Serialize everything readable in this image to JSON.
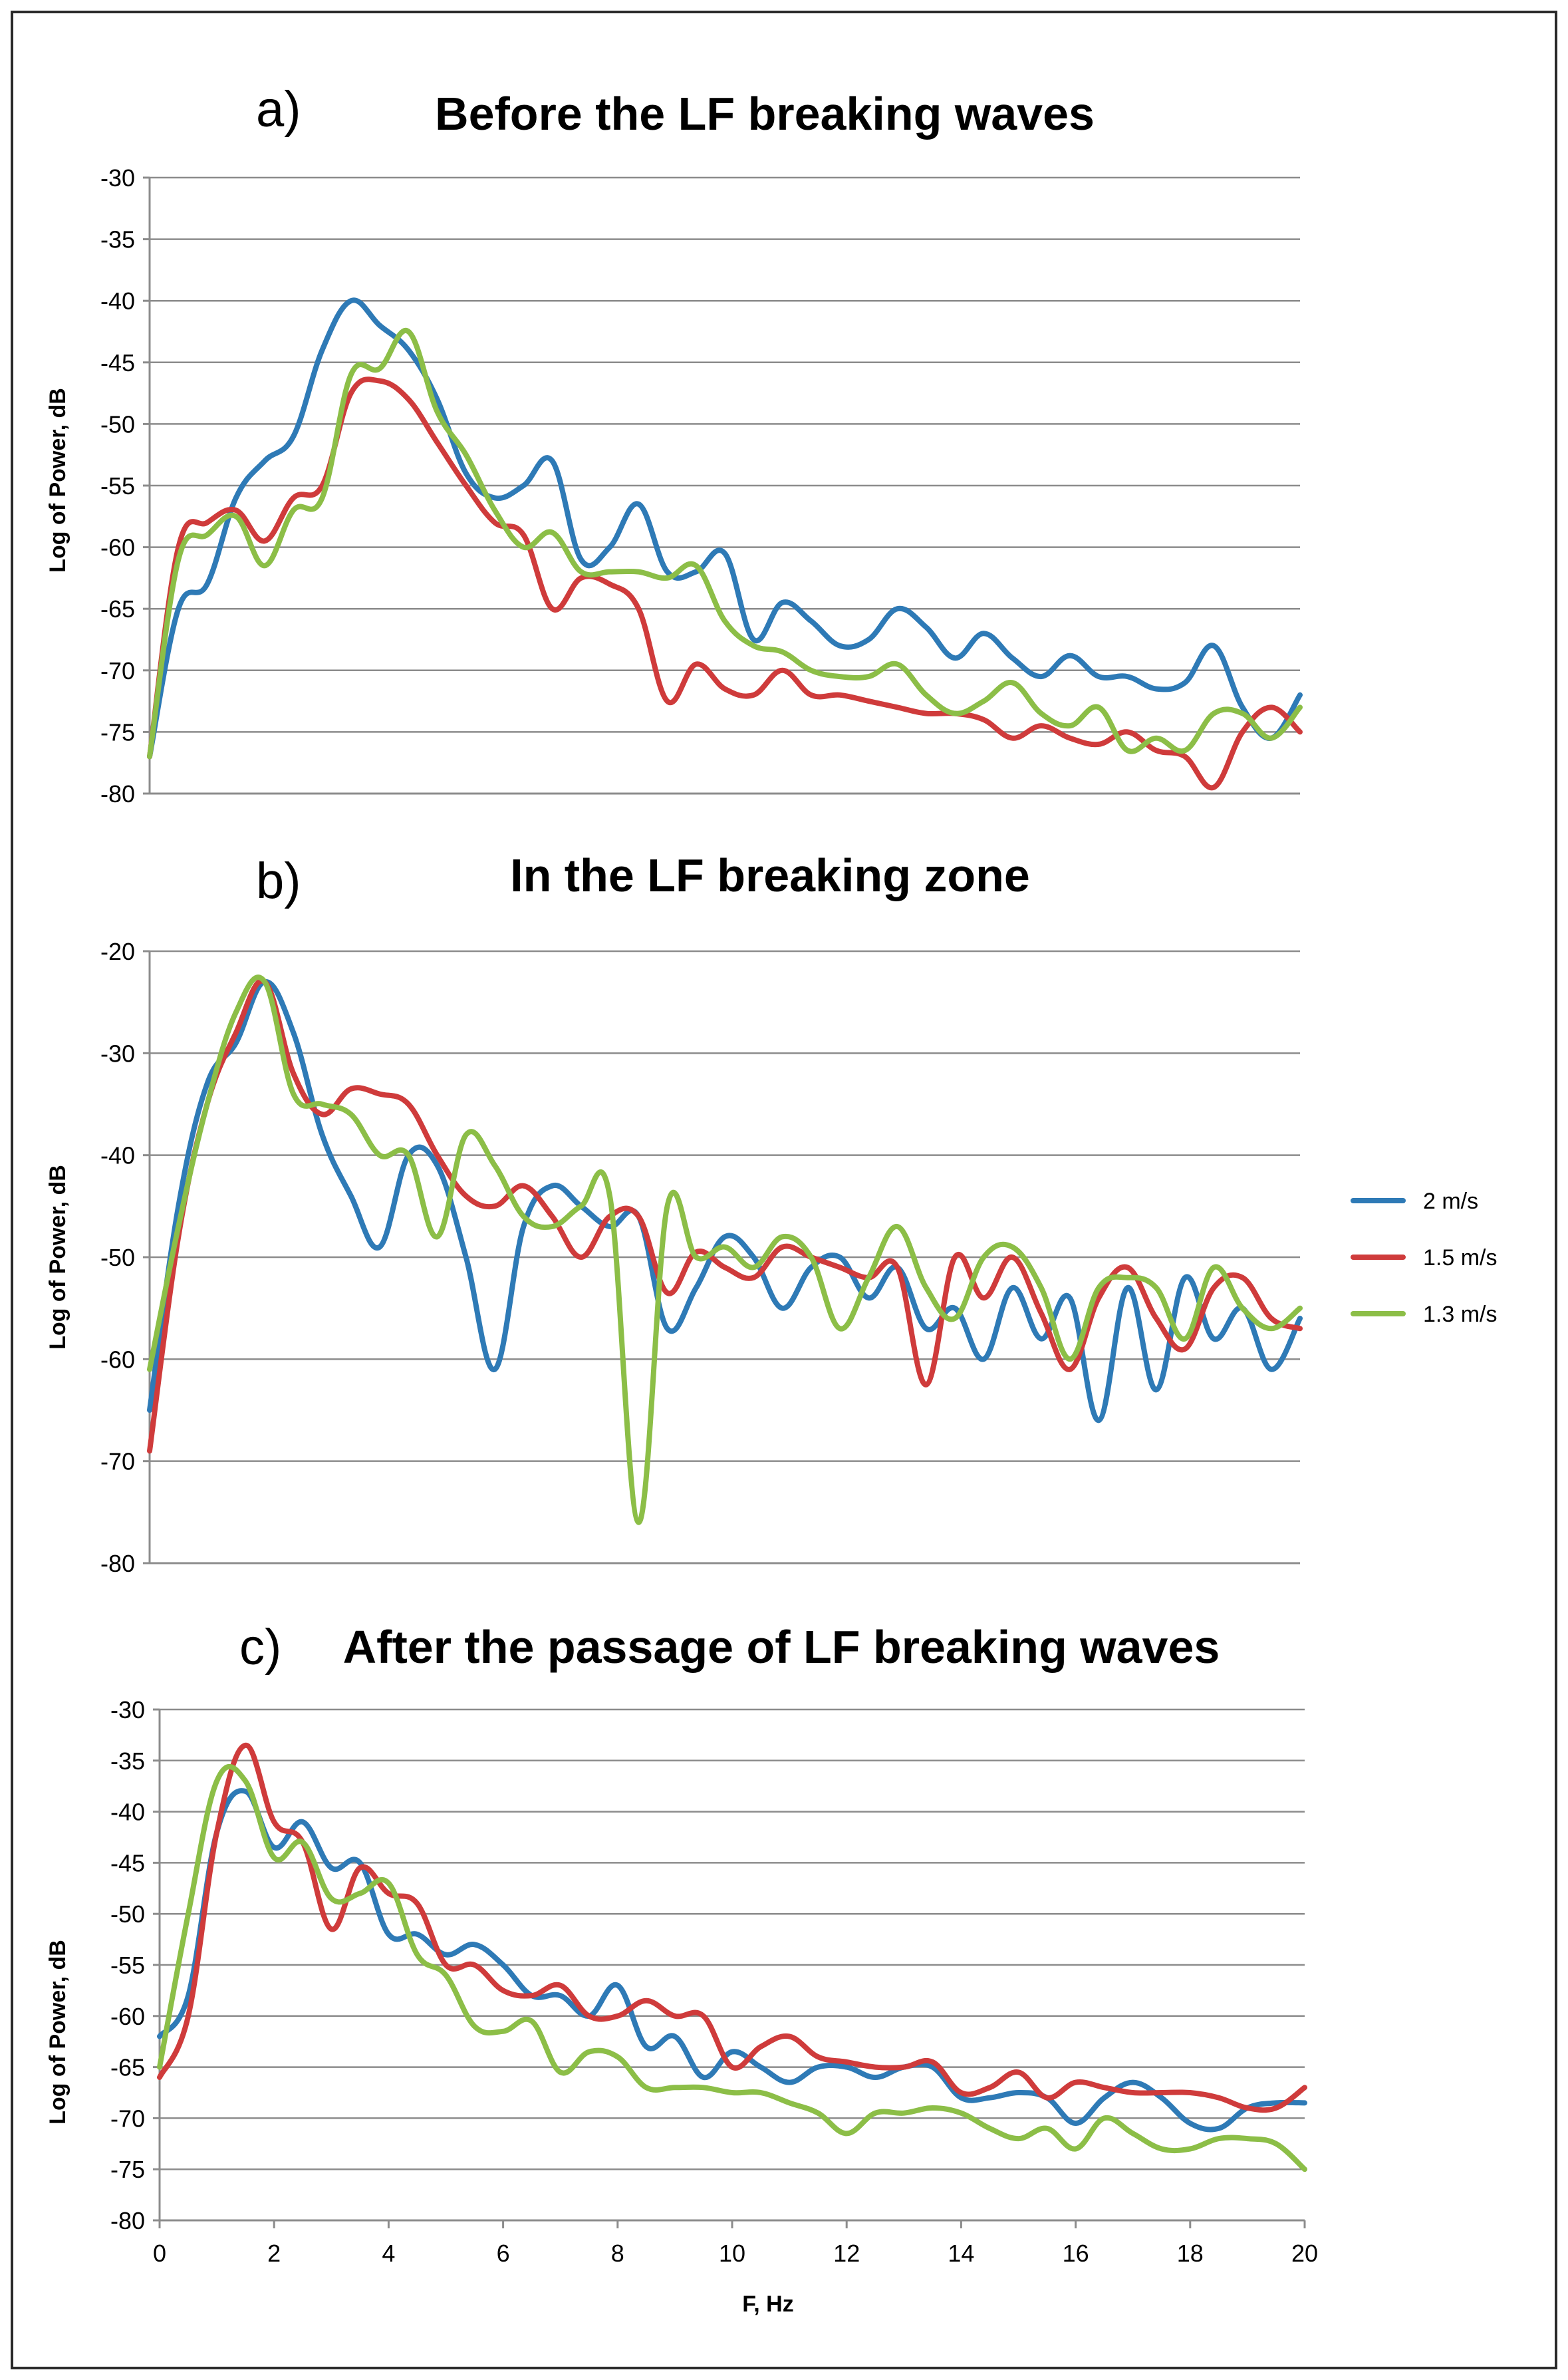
{
  "colors": {
    "s2": "#2e7ab6",
    "s15": "#cf3b3b",
    "s13": "#8cbe47"
  },
  "chart_data": [
    {
      "type": "line",
      "panel": "a)",
      "title": "Before the LF breaking waves",
      "xlabel": "",
      "ylabel": "Log of Power, dB",
      "xlim": [
        0,
        20
      ],
      "ylim": [
        -80,
        -30
      ],
      "yticks": [
        -30,
        -35,
        -40,
        -45,
        -50,
        -55,
        -60,
        -65,
        -70,
        -75,
        -80
      ],
      "xticks": [],
      "grid": true,
      "series": [
        {
          "name": "2 m/s",
          "x": [
            0,
            0.5,
            1,
            1.5,
            2,
            2.5,
            3,
            3.5,
            4,
            4.5,
            5,
            5.5,
            6,
            6.5,
            7,
            7.5,
            8,
            8.5,
            9,
            9.5,
            10,
            10.5,
            11,
            11.5,
            12,
            12.5,
            13,
            13.5,
            14,
            14.5,
            15,
            15.5,
            16,
            16.5,
            17,
            17.5,
            18,
            18.5,
            19,
            19.5,
            20
          ],
          "y": [
            -77,
            -65,
            -63,
            -56,
            -53,
            -51,
            -44,
            -40,
            -42,
            -44,
            -48,
            -54,
            -56,
            -55,
            -53,
            -61,
            -60,
            -56.5,
            -62,
            -62,
            -60.5,
            -67.5,
            -64.5,
            -66,
            -68,
            -67.5,
            -65,
            -66.5,
            -69,
            -67,
            -69,
            -70.5,
            -68.8,
            -70.5,
            -70.5,
            -71.5,
            -71,
            -68,
            -73,
            -75.5,
            -72
          ]
        },
        {
          "name": "1.5 m/s",
          "x": [
            0,
            0.5,
            1,
            1.5,
            2,
            2.5,
            3,
            3.5,
            4,
            4.5,
            5,
            5.5,
            6,
            6.5,
            7,
            7.5,
            8,
            8.5,
            9,
            9.5,
            10,
            10.5,
            11,
            11.5,
            12,
            12.5,
            13,
            13.5,
            14,
            14.5,
            15,
            15.5,
            16,
            16.5,
            17,
            17.5,
            18,
            18.5,
            19,
            19.5,
            20
          ],
          "y": [
            -77,
            -60,
            -58,
            -57,
            -59.5,
            -56,
            -55,
            -47.5,
            -46.5,
            -48,
            -51.5,
            -55,
            -58,
            -59,
            -65,
            -62.5,
            -63,
            -65,
            -72.5,
            -69.5,
            -71.5,
            -72,
            -70,
            -72,
            -72,
            -72.5,
            -73,
            -73.5,
            -73.5,
            -74,
            -75.5,
            -74.5,
            -75.5,
            -76,
            -75,
            -76.5,
            -77,
            -79.5,
            -75,
            -73,
            -75
          ]
        },
        {
          "name": "1.3 m/s",
          "x": [
            0,
            0.5,
            1,
            1.5,
            2,
            2.5,
            3,
            3.5,
            4,
            4.5,
            5,
            5.5,
            6,
            6.5,
            7,
            7.5,
            8,
            8.5,
            9,
            9.5,
            10,
            10.5,
            11,
            11.5,
            12,
            12.5,
            13,
            13.5,
            14,
            14.5,
            15,
            15.5,
            16,
            16.5,
            17,
            17.5,
            18,
            18.5,
            19,
            19.5,
            20
          ],
          "y": [
            -77,
            -61,
            -59,
            -57.5,
            -61.5,
            -57,
            -56,
            -46,
            -45.5,
            -42.5,
            -49,
            -52.5,
            -57,
            -60,
            -58.8,
            -62,
            -62,
            -62,
            -62.5,
            -61.5,
            -66,
            -68,
            -68.5,
            -70,
            -70.5,
            -70.5,
            -69.5,
            -72,
            -73.5,
            -72.5,
            -71,
            -73.5,
            -74.5,
            -73,
            -76.5,
            -75.5,
            -76.5,
            -73.5,
            -73.5,
            -75.5,
            -73
          ]
        }
      ]
    },
    {
      "type": "line",
      "panel": "b)",
      "title": "In the LF breaking zone",
      "xlabel": "",
      "ylabel": "Log of Power, dB",
      "xlim": [
        0,
        20
      ],
      "ylim": [
        -80,
        -20
      ],
      "yticks": [
        -20,
        -30,
        -40,
        -50,
        -60,
        -70,
        -80
      ],
      "xticks": [],
      "grid": true,
      "series": [
        {
          "name": "2 m/s",
          "x": [
            0,
            0.5,
            1,
            1.5,
            2,
            2.5,
            3,
            3.5,
            4,
            4.5,
            5,
            5.5,
            6,
            6.5,
            7,
            7.5,
            8,
            8.5,
            9,
            9.5,
            10,
            10.5,
            11,
            11.5,
            12,
            12.5,
            13,
            13.5,
            14,
            14.5,
            15,
            15.5,
            16,
            16.5,
            17,
            17.5,
            18,
            18.5,
            19,
            19.5,
            20
          ],
          "y": [
            -65,
            -45,
            -33,
            -29,
            -23,
            -28,
            -38,
            -44,
            -49,
            -40,
            -41,
            -50,
            -61,
            -47,
            -43,
            -45,
            -47,
            -46,
            -57,
            -53,
            -48,
            -50,
            -55,
            -51,
            -50,
            -54,
            -51,
            -57,
            -55,
            -60,
            -53,
            -58,
            -54,
            -66,
            -53,
            -63,
            -52,
            -58,
            -55,
            -61,
            -56
          ]
        },
        {
          "name": "1.5 m/s",
          "x": [
            0,
            0.5,
            1,
            1.5,
            2,
            2.5,
            3,
            3.5,
            4,
            4.5,
            5,
            5.5,
            6,
            6.5,
            7,
            7.5,
            8,
            8.5,
            9,
            9.5,
            10,
            10.5,
            11,
            11.5,
            12,
            12.5,
            13,
            13.5,
            14,
            14.5,
            15,
            15.5,
            16,
            16.5,
            17,
            17.5,
            18,
            18.5,
            19,
            19.5,
            20
          ],
          "y": [
            -69,
            -48,
            -35,
            -28,
            -23,
            -32,
            -36,
            -33.5,
            -34,
            -35,
            -40,
            -44,
            -45,
            -43,
            -46,
            -50,
            -46,
            -46,
            -53.5,
            -49.5,
            -51,
            -52,
            -49,
            -50,
            -51,
            -52,
            -51,
            -62.5,
            -50,
            -54,
            -50,
            -55.5,
            -61,
            -54,
            -51,
            -56,
            -59,
            -53,
            -52,
            -56,
            -57
          ]
        },
        {
          "name": "1.3 m/s",
          "x": [
            0,
            0.5,
            1,
            1.5,
            2,
            2.5,
            3,
            3.5,
            4,
            4.5,
            5,
            5.5,
            6,
            6.5,
            7,
            7.5,
            8,
            8.5,
            9,
            9.5,
            10,
            10.5,
            11,
            11.5,
            12,
            12.5,
            13,
            13.5,
            14,
            14.5,
            15,
            15.5,
            16,
            16.5,
            17,
            17.5,
            18,
            18.5,
            19,
            19.5,
            20
          ],
          "y": [
            -61,
            -47,
            -35,
            -26,
            -23,
            -34,
            -35,
            -36,
            -40,
            -40,
            -48,
            -38,
            -41,
            -46,
            -47,
            -45,
            -44,
            -76,
            -45,
            -50,
            -49,
            -51,
            -48,
            -50,
            -57,
            -52,
            -47,
            -53,
            -56,
            -50,
            -49,
            -53,
            -60,
            -53,
            -52,
            -53,
            -58,
            -51,
            -55,
            -57,
            -55
          ]
        }
      ]
    },
    {
      "type": "line",
      "panel": "c)",
      "title": "After the passage of LF breaking waves",
      "xlabel": "F, Hz",
      "ylabel": "Log of Power, dB",
      "xlim": [
        0,
        20
      ],
      "ylim": [
        -80,
        -30
      ],
      "yticks": [
        -30,
        -35,
        -40,
        -45,
        -50,
        -55,
        -60,
        -65,
        -70,
        -75,
        -80
      ],
      "xticks": [
        0,
        2,
        4,
        6,
        8,
        10,
        12,
        14,
        16,
        18,
        20
      ],
      "grid": true,
      "series": [
        {
          "name": "2 m/s",
          "x": [
            0,
            0.5,
            1,
            1.5,
            2,
            2.5,
            3,
            3.5,
            4,
            4.5,
            5,
            5.5,
            6,
            6.5,
            7,
            7.5,
            8,
            8.5,
            9,
            9.5,
            10,
            10.5,
            11,
            11.5,
            12,
            12.5,
            13,
            13.5,
            14,
            14.5,
            15,
            15.5,
            16,
            16.5,
            17,
            17.5,
            18,
            18.5,
            19,
            19.5,
            20
          ],
          "y": [
            -62,
            -58,
            -42,
            -38,
            -43.5,
            -41,
            -45.5,
            -45,
            -52,
            -52,
            -54,
            -53,
            -55,
            -58,
            -58,
            -60,
            -57,
            -63,
            -62,
            -66,
            -63.5,
            -65,
            -66.5,
            -65,
            -65,
            -66,
            -65,
            -65,
            -68,
            -68,
            -67.5,
            -68,
            -70.5,
            -68,
            -66.5,
            -68,
            -70.5,
            -71,
            -69,
            -68.5,
            -68.5
          ]
        },
        {
          "name": "1.5 m/s",
          "x": [
            0,
            0.5,
            1,
            1.5,
            2,
            2.5,
            3,
            3.5,
            4,
            4.5,
            5,
            5.5,
            6,
            6.5,
            7,
            7.5,
            8,
            8.5,
            9,
            9.5,
            10,
            10.5,
            11,
            11.5,
            12,
            12.5,
            13,
            13.5,
            14,
            14.5,
            15,
            15.5,
            16,
            16.5,
            17,
            17.5,
            18,
            18.5,
            19,
            19.5,
            20
          ],
          "y": [
            -66,
            -60,
            -42,
            -33.5,
            -41,
            -43,
            -51.5,
            -45.5,
            -48,
            -49,
            -55,
            -55,
            -57.5,
            -58,
            -57,
            -60,
            -60,
            -58.5,
            -60,
            -60,
            -65,
            -63,
            -62,
            -64,
            -64.5,
            -65,
            -65,
            -64.5,
            -67.5,
            -67,
            -65.5,
            -68,
            -66.5,
            -67,
            -67.5,
            -67.5,
            -67.5,
            -68,
            -69,
            -69,
            -67
          ]
        },
        {
          "name": "1.3 m/s",
          "x": [
            0,
            0.5,
            1,
            1.5,
            2,
            2.5,
            3,
            3.5,
            4,
            4.5,
            5,
            5.5,
            6,
            6.5,
            7,
            7.5,
            8,
            8.5,
            9,
            9.5,
            10,
            10.5,
            11,
            11.5,
            12,
            12.5,
            13,
            13.5,
            14,
            14.5,
            15,
            15.5,
            16,
            16.5,
            17,
            17.5,
            18,
            18.5,
            19,
            19.5,
            20
          ],
          "y": [
            -65,
            -50,
            -37,
            -37,
            -44.5,
            -43,
            -48.5,
            -48,
            -47,
            -54,
            -56,
            -61,
            -61.5,
            -60.5,
            -65.5,
            -63.5,
            -64,
            -67,
            -67,
            -67,
            -67.5,
            -67.5,
            -68.5,
            -69.5,
            -71.5,
            -69.5,
            -69.5,
            -69,
            -69.5,
            -71,
            -72,
            -71,
            -73,
            -70,
            -71.5,
            -73,
            -73,
            -72,
            -72,
            -72.5,
            -75
          ]
        }
      ]
    }
  ],
  "legend": [
    {
      "label": "2 m/s",
      "color": "#2e7ab6"
    },
    {
      "label": "1.5 m/s",
      "color": "#cf3b3b"
    },
    {
      "label": "1.3 m/s",
      "color": "#8cbe47"
    }
  ]
}
